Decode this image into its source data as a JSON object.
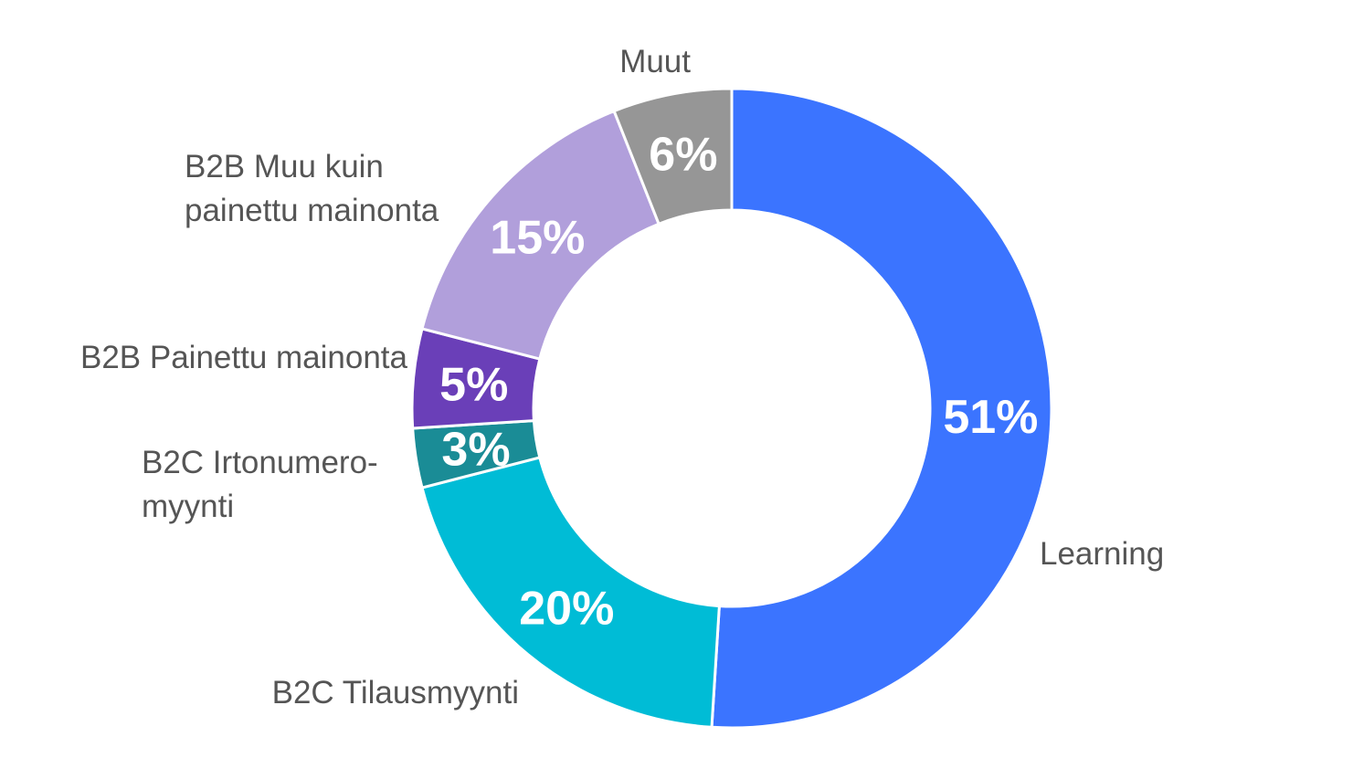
{
  "chart_data": {
    "type": "pie",
    "variant": "donut",
    "slices": [
      {
        "label": [
          "Learning"
        ],
        "value": 51,
        "value_label": "51%",
        "color": "#3b74ff"
      },
      {
        "label": [
          "B2C Tilausmyynti"
        ],
        "value": 20,
        "value_label": "20%",
        "color": "#00bcd6"
      },
      {
        "label": [
          "B2C Irtonumero-",
          "myynti"
        ],
        "value": 3,
        "value_label": "3%",
        "color": "#1a8c96"
      },
      {
        "label": [
          "B2B Painettu mainonta"
        ],
        "value": 5,
        "value_label": "5%",
        "color": "#6a3fb8"
      },
      {
        "label": [
          "B2B Muu kuin",
          "painettu mainonta"
        ],
        "value": 15,
        "value_label": "15%",
        "color": "#b19fdb"
      },
      {
        "label": [
          "Muut"
        ],
        "value": 6,
        "value_label": "6%",
        "color": "#969696"
      }
    ]
  }
}
